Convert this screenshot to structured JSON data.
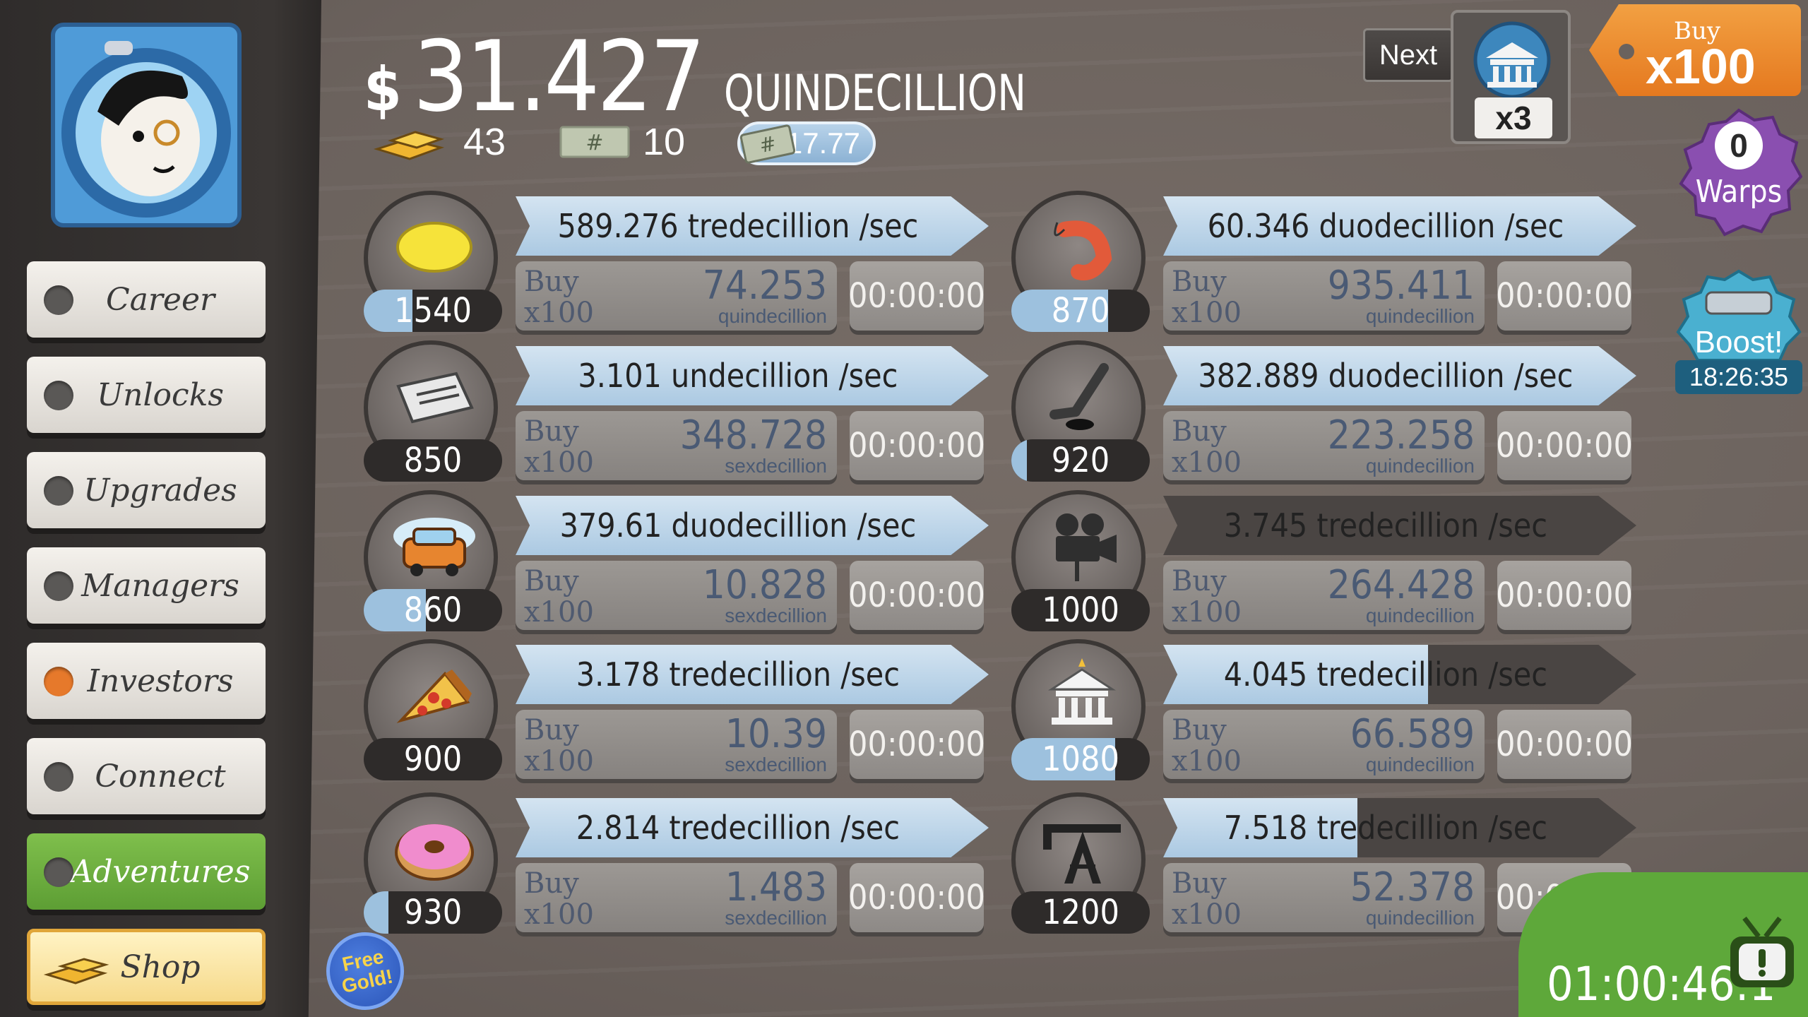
{
  "header": {
    "currency_symbol": "$",
    "balance": "31.427",
    "balance_unit": "QUINDECILLION",
    "gold_count": "43",
    "megabucks_count": "10",
    "multiplier": "x17.77"
  },
  "milestone": {
    "next_label": "Next",
    "multiplier": "x3",
    "icon": "bank-icon"
  },
  "buy_mode": {
    "line1": "Buy",
    "line2": "x100"
  },
  "warps": {
    "count": "0",
    "label": "Warps"
  },
  "boost": {
    "label": "Boost!",
    "timer": "18:26:35"
  },
  "sidebar": {
    "items": [
      {
        "label": "Career"
      },
      {
        "label": "Unlocks"
      },
      {
        "label": "Upgrades"
      },
      {
        "label": "Managers"
      },
      {
        "label": "Investors"
      },
      {
        "label": "Connect"
      },
      {
        "label": "Adventures"
      },
      {
        "label": "Shop"
      }
    ]
  },
  "businesses": [
    {
      "icon": "lemon-icon",
      "count": "1540",
      "count_progress": 0.35,
      "rate": "589.276 tredecillion /sec",
      "rate_progress": 1.0,
      "buy_line1": "Buy",
      "buy_line2": "x100",
      "cost": "74.253",
      "cost_unit": "quindecillion",
      "timer": "00:00:00"
    },
    {
      "icon": "newspaper-icon",
      "count": "850",
      "count_progress": 0.0,
      "rate": "3.101 undecillion /sec",
      "rate_progress": 1.0,
      "buy_line1": "Buy",
      "buy_line2": "x100",
      "cost": "348.728",
      "cost_unit": "sexdecillion",
      "timer": "00:00:00"
    },
    {
      "icon": "car-wash-icon",
      "count": "860",
      "count_progress": 0.45,
      "rate": "379.61 duodecillion /sec",
      "rate_progress": 1.0,
      "buy_line1": "Buy",
      "buy_line2": "x100",
      "cost": "10.828",
      "cost_unit": "sexdecillion",
      "timer": "00:00:00"
    },
    {
      "icon": "pizza-icon",
      "count": "900",
      "count_progress": 0.0,
      "rate": "3.178 tredecillion /sec",
      "rate_progress": 1.0,
      "buy_line1": "Buy",
      "buy_line2": "x100",
      "cost": "10.39",
      "cost_unit": "sexdecillion",
      "timer": "00:00:00"
    },
    {
      "icon": "donut-icon",
      "count": "930",
      "count_progress": 0.18,
      "rate": "2.814 tredecillion /sec",
      "rate_progress": 1.0,
      "buy_line1": "Buy",
      "buy_line2": "x100",
      "cost": "1.483",
      "cost_unit": "sexdecillion",
      "timer": "00:00:00"
    },
    {
      "icon": "shrimp-icon",
      "count": "870",
      "count_progress": 0.7,
      "rate": "60.346 duodecillion /sec",
      "rate_progress": 1.0,
      "buy_line1": "Buy",
      "buy_line2": "x100",
      "cost": "935.411",
      "cost_unit": "quindecillion",
      "timer": "00:00:00"
    },
    {
      "icon": "hockey-icon",
      "count": "920",
      "count_progress": 0.11,
      "rate": "382.889 duodecillion /sec",
      "rate_progress": 1.0,
      "buy_line1": "Buy",
      "buy_line2": "x100",
      "cost": "223.258",
      "cost_unit": "quindecillion",
      "timer": "00:00:00"
    },
    {
      "icon": "movie-camera-icon",
      "count": "1000",
      "count_progress": 0.0,
      "rate": "3.745 tredecillion /sec",
      "rate_progress": 0.0,
      "buy_line1": "Buy",
      "buy_line2": "x100",
      "cost": "264.428",
      "cost_unit": "quindecillion",
      "timer": "00:00:00"
    },
    {
      "icon": "bank-icon",
      "count": "1080",
      "count_progress": 0.75,
      "rate": "4.045 tredecillion /sec",
      "rate_progress": 0.56,
      "buy_line1": "Buy",
      "buy_line2": "x100",
      "cost": "66.589",
      "cost_unit": "quindecillion",
      "timer": "00:00:00"
    },
    {
      "icon": "oil-rig-icon",
      "count": "1200",
      "count_progress": 0.0,
      "rate": "7.518 tredecillion /sec",
      "rate_progress": 0.41,
      "buy_line1": "Buy",
      "buy_line2": "x100",
      "cost": "52.378",
      "cost_unit": "quindecillion",
      "timer": "00:00:05"
    }
  ],
  "free_gold": {
    "line1": "Free",
    "line2": "Gold!"
  },
  "event_timer": "01:00:46:1",
  "colors": {
    "accent_orange": "#e6792b",
    "progress_blue": "#abc9e2",
    "adventure_green": "#5d9e34"
  }
}
